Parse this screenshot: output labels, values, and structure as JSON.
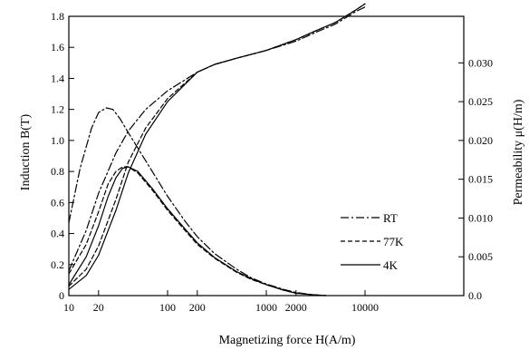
{
  "chart_data": {
    "type": "line",
    "title": "",
    "xlabel": "Magnetizing force H(A/m)",
    "ylabel_left": "Induction B(T)",
    "ylabel_right": "Permeability μ(H/m)",
    "x_scale": "log",
    "xlim": [
      10,
      100000
    ],
    "ylim_left": [
      0,
      1.8
    ],
    "ylim_right": [
      0,
      0.036
    ],
    "x_ticks": [
      {
        "value": 10,
        "label": "10"
      },
      {
        "value": 20,
        "label": "20"
      },
      {
        "value": 100,
        "label": "100"
      },
      {
        "value": 200,
        "label": "200"
      },
      {
        "value": 1000,
        "label": "1000"
      },
      {
        "value": 2000,
        "label": "2000"
      },
      {
        "value": 10000,
        "label": "10000"
      }
    ],
    "y_left_ticks": [
      {
        "value": 0,
        "label": "0"
      },
      {
        "value": 0.2,
        "label": "0.2"
      },
      {
        "value": 0.4,
        "label": "0.4"
      },
      {
        "value": 0.6,
        "label": "0.6"
      },
      {
        "value": 0.8,
        "label": "0.8"
      },
      {
        "value": 1.0,
        "label": "1.0"
      },
      {
        "value": 1.2,
        "label": "1.2"
      },
      {
        "value": 1.4,
        "label": "1.4"
      },
      {
        "value": 1.6,
        "label": "1.6"
      },
      {
        "value": 1.8,
        "label": "1.8"
      }
    ],
    "y_right_ticks": [
      {
        "value": 0.0,
        "label": "0.0"
      },
      {
        "value": 0.005,
        "label": "0.005"
      },
      {
        "value": 0.01,
        "label": "0.010"
      },
      {
        "value": 0.015,
        "label": "0.015"
      },
      {
        "value": 0.02,
        "label": "0.020"
      },
      {
        "value": 0.025,
        "label": "0.025"
      },
      {
        "value": 0.03,
        "label": "0.030"
      }
    ],
    "grid": false,
    "legend_position": "right",
    "series": [
      {
        "name": "RT",
        "dash": "dashdot",
        "B": [
          [
            10,
            0.16
          ],
          [
            15,
            0.42
          ],
          [
            20,
            0.66
          ],
          [
            30,
            0.92
          ],
          [
            40,
            1.06
          ],
          [
            60,
            1.2
          ],
          [
            100,
            1.32
          ],
          [
            200,
            1.44
          ],
          [
            300,
            1.49
          ],
          [
            500,
            1.53
          ],
          [
            1000,
            1.58
          ],
          [
            2000,
            1.64
          ],
          [
            3000,
            1.69
          ],
          [
            5000,
            1.75
          ],
          [
            8000,
            1.83
          ],
          [
            10000,
            1.86
          ]
        ],
        "mu": [
          [
            10,
            0.0094
          ],
          [
            13,
            0.0164
          ],
          [
            17,
            0.0216
          ],
          [
            20,
            0.0236
          ],
          [
            24,
            0.0242
          ],
          [
            28,
            0.024
          ],
          [
            33,
            0.0228
          ],
          [
            40,
            0.021
          ],
          [
            50,
            0.019
          ],
          [
            70,
            0.016
          ],
          [
            100,
            0.0128
          ],
          [
            150,
            0.0096
          ],
          [
            200,
            0.0076
          ],
          [
            300,
            0.0054
          ],
          [
            500,
            0.0034
          ],
          [
            700,
            0.0023
          ],
          [
            1000,
            0.0015
          ],
          [
            1500,
            0.0008
          ],
          [
            2000,
            0.0004
          ],
          [
            3000,
            0.0001
          ],
          [
            4000,
            0.0
          ]
        ]
      },
      {
        "name": "77K",
        "dash": "dashed",
        "B": [
          [
            10,
            0.06
          ],
          [
            15,
            0.17
          ],
          [
            20,
            0.32
          ],
          [
            30,
            0.62
          ],
          [
            40,
            0.86
          ],
          [
            60,
            1.08
          ],
          [
            100,
            1.27
          ],
          [
            200,
            1.44
          ],
          [
            300,
            1.49
          ],
          [
            500,
            1.53
          ],
          [
            1000,
            1.58
          ],
          [
            2000,
            1.65
          ],
          [
            3000,
            1.7
          ],
          [
            5000,
            1.76
          ],
          [
            8000,
            1.84
          ],
          [
            10000,
            1.88
          ]
        ],
        "mu": [
          [
            10,
            0.0028
          ],
          [
            15,
            0.0066
          ],
          [
            20,
            0.0108
          ],
          [
            25,
            0.0144
          ],
          [
            30,
            0.016
          ],
          [
            35,
            0.0166
          ],
          [
            40,
            0.0166
          ],
          [
            50,
            0.0158
          ],
          [
            70,
            0.0136
          ],
          [
            100,
            0.011
          ],
          [
            150,
            0.0084
          ],
          [
            200,
            0.0066
          ],
          [
            300,
            0.0048
          ],
          [
            500,
            0.003
          ],
          [
            700,
            0.0021
          ],
          [
            1000,
            0.0014
          ],
          [
            1500,
            0.0007
          ],
          [
            2000,
            0.0003
          ],
          [
            3000,
            0.0001
          ],
          [
            4000,
            0.0
          ]
        ]
      },
      {
        "name": "4K",
        "dash": "solid",
        "B": [
          [
            10,
            0.04
          ],
          [
            15,
            0.13
          ],
          [
            20,
            0.26
          ],
          [
            30,
            0.55
          ],
          [
            40,
            0.79
          ],
          [
            60,
            1.04
          ],
          [
            100,
            1.25
          ],
          [
            200,
            1.44
          ],
          [
            300,
            1.49
          ],
          [
            500,
            1.53
          ],
          [
            1000,
            1.58
          ],
          [
            2000,
            1.65
          ],
          [
            3000,
            1.7
          ],
          [
            5000,
            1.76
          ],
          [
            8000,
            1.84
          ],
          [
            10000,
            1.88
          ]
        ],
        "mu": [
          [
            10,
            0.0014
          ],
          [
            15,
            0.005
          ],
          [
            20,
            0.009
          ],
          [
            25,
            0.0128
          ],
          [
            30,
            0.0152
          ],
          [
            35,
            0.0164
          ],
          [
            40,
            0.0166
          ],
          [
            50,
            0.016
          ],
          [
            70,
            0.0138
          ],
          [
            100,
            0.0112
          ],
          [
            150,
            0.0086
          ],
          [
            200,
            0.0068
          ],
          [
            300,
            0.0049
          ],
          [
            500,
            0.0031
          ],
          [
            700,
            0.0022
          ],
          [
            1000,
            0.0014
          ],
          [
            1500,
            0.0007
          ],
          [
            2000,
            0.0003
          ],
          [
            3000,
            0.0001
          ],
          [
            4000,
            0.0
          ]
        ]
      }
    ]
  }
}
